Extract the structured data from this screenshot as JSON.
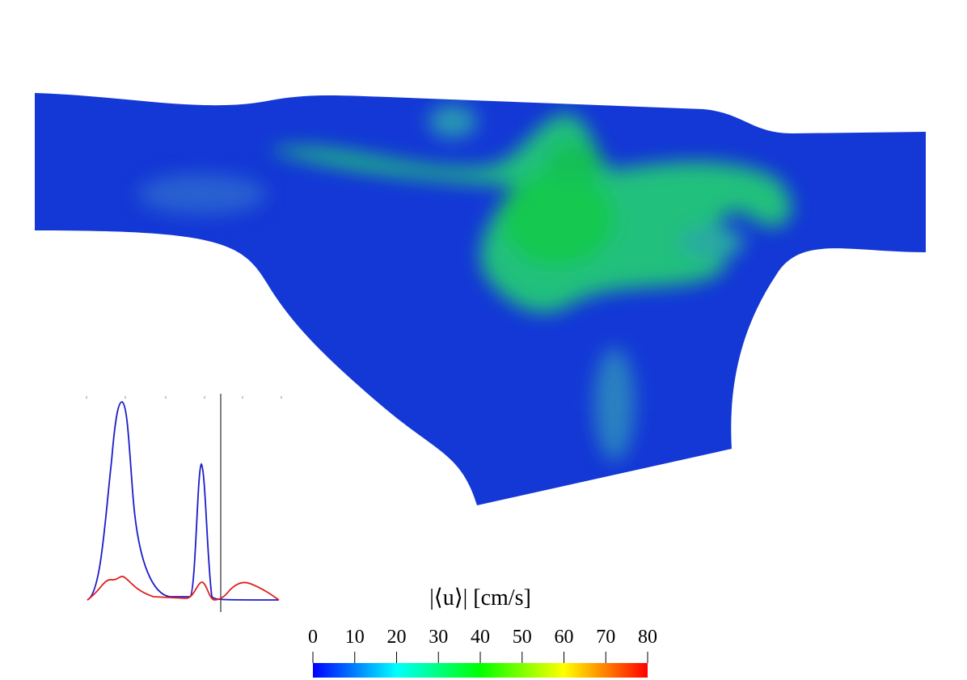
{
  "colorbar": {
    "title": "|⟨u⟩| [cm/s]",
    "lim": [
      0,
      80
    ],
    "ticks": [
      0,
      10,
      20,
      30,
      40,
      50,
      60,
      70,
      80
    ],
    "colors": [
      "#0000ff",
      "#00ffff",
      "#00ff00",
      "#ffff00",
      "#ff0000"
    ]
  }
}
